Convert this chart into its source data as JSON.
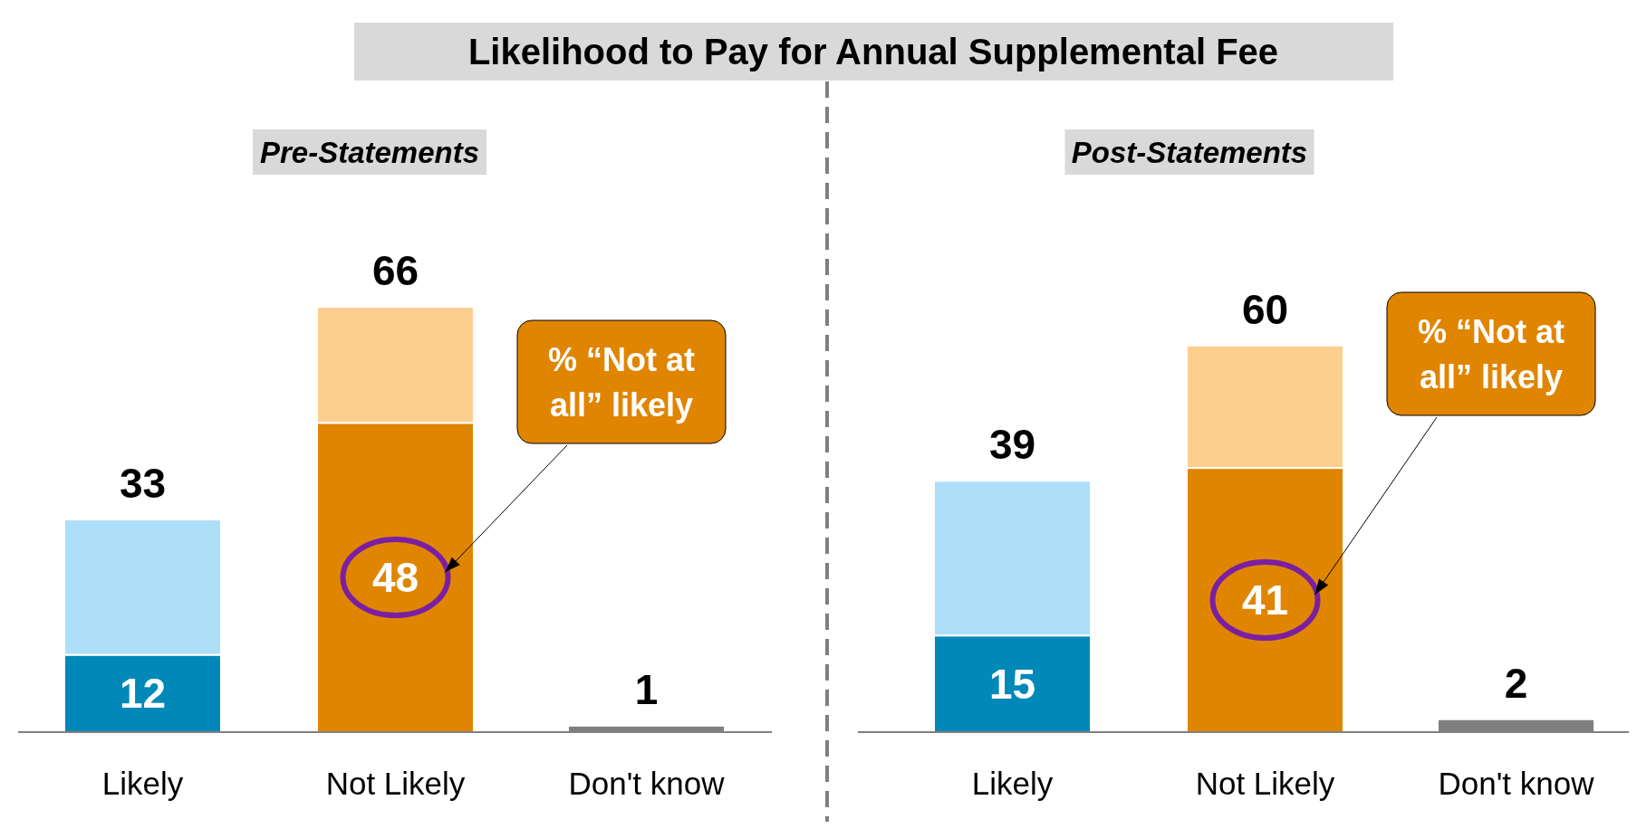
{
  "chart_data": [
    {
      "type": "bar",
      "title": "Likelihood to Pay for Annual Supplemental Fee",
      "subtitle": "Pre-Statements",
      "stacked": true,
      "categories": [
        "Likely",
        "Not Likely",
        "Don't know"
      ],
      "series": [
        {
          "values": [
            12,
            48,
            1
          ],
          "colors": [
            "#0088b8",
            "#e08500",
            "#7f7f7f"
          ],
          "value_labels": [
            "12",
            "48",
            null
          ]
        },
        {
          "values": [
            21,
            18,
            null
          ],
          "colors": [
            "#addff9",
            "#fdcf8f",
            null
          ]
        }
      ],
      "totals": [
        "33",
        "66",
        "1"
      ],
      "annotations": [
        "% “Not at all” likely"
      ]
    },
    {
      "type": "bar",
      "subtitle": "Post-Statements",
      "stacked": true,
      "categories": [
        "Likely",
        "Not Likely",
        "Don't know"
      ],
      "series": [
        {
          "values": [
            15,
            41,
            2
          ],
          "colors": [
            "#0088b8",
            "#e08500",
            "#7f7f7f"
          ],
          "value_labels": [
            "15",
            "41",
            null
          ]
        },
        {
          "values": [
            24,
            19,
            null
          ],
          "colors": [
            "#addff9",
            "#fdcf8f",
            null
          ]
        }
      ],
      "totals": [
        "39",
        "60",
        "2"
      ],
      "annotations": [
        "% “Not at all” likely"
      ]
    }
  ]
}
